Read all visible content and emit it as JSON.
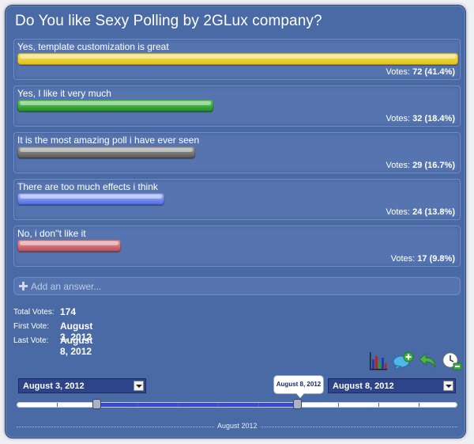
{
  "poll": {
    "title": "Do You like Sexy Polling by 2GLux company?",
    "answers": [
      {
        "label": "Yes, template customization is great",
        "votes_prefix": "Votes:",
        "votes": "72",
        "percent": "(41.4%)",
        "fill_fraction": 1.0,
        "color": "#e8c91a"
      },
      {
        "label": "Yes, I like it very much",
        "votes_prefix": "Votes:",
        "votes": "32",
        "percent": "(18.4%)",
        "fill_fraction": 0.444,
        "color": "#2fa22f"
      },
      {
        "label": "It is the most amazing poll i have ever seen",
        "votes_prefix": "Votes:",
        "votes": "29",
        "percent": "(16.7%)",
        "fill_fraction": 0.403,
        "color": "#6a6a6a"
      },
      {
        "label": "There are too much effects i think",
        "votes_prefix": "Votes:",
        "votes": "24",
        "percent": "(13.8%)",
        "fill_fraction": 0.333,
        "color": "#5a7be8"
      },
      {
        "label": "No, i don''t like it",
        "votes_prefix": "Votes:",
        "votes": "17",
        "percent": "(9.8%)",
        "fill_fraction": 0.236,
        "color": "#c95a64"
      }
    ],
    "add_answer_placeholder": "Add an answer...",
    "stats": {
      "total_label": "Total Votes:",
      "total_value": "174",
      "first_label": "First Vote:",
      "first_value": "August 3, 2012",
      "last_label": "Last Vote:",
      "last_value": "August 8, 2012"
    },
    "tools": [
      "bar-chart-icon",
      "add-comment-icon",
      "back-arrow-icon",
      "clock-icon"
    ],
    "date_range": {
      "from": "August 3, 2012",
      "to": "August 8, 2012",
      "tooltip": "August 8, 2012",
      "timeline_label": "August 2012"
    }
  }
}
